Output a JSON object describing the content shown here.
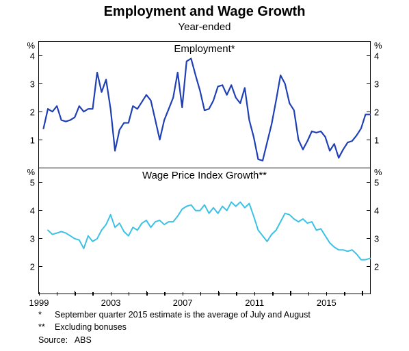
{
  "title": "Employment and Wage Growth",
  "subtitle": "Year-ended",
  "x_domain": [
    1997.0,
    2015.5
  ],
  "x_ticks": [
    1999,
    2003,
    2007,
    2011,
    2015
  ],
  "panels": [
    {
      "title": "Employment*",
      "ylim": [
        0,
        4.5
      ],
      "yticks": [
        1,
        2,
        3,
        4
      ],
      "unit": "%",
      "line_color": "#1f3fb5",
      "line_width": 2.2,
      "series": [
        [
          1997.25,
          1.4
        ],
        [
          1997.5,
          2.1
        ],
        [
          1997.75,
          2.0
        ],
        [
          1998.0,
          2.2
        ],
        [
          1998.25,
          1.7
        ],
        [
          1998.5,
          1.65
        ],
        [
          1998.75,
          1.7
        ],
        [
          1999.0,
          1.8
        ],
        [
          1999.25,
          2.2
        ],
        [
          1999.5,
          2.0
        ],
        [
          1999.75,
          2.1
        ],
        [
          2000.0,
          2.1
        ],
        [
          2000.25,
          3.4
        ],
        [
          2000.5,
          2.7
        ],
        [
          2000.75,
          3.15
        ],
        [
          2001.0,
          2.1
        ],
        [
          2001.25,
          0.6
        ],
        [
          2001.5,
          1.35
        ],
        [
          2001.75,
          1.6
        ],
        [
          2002.0,
          1.6
        ],
        [
          2002.25,
          2.2
        ],
        [
          2002.5,
          2.1
        ],
        [
          2002.75,
          2.35
        ],
        [
          2003.0,
          2.6
        ],
        [
          2003.25,
          2.4
        ],
        [
          2003.5,
          1.7
        ],
        [
          2003.75,
          1.0
        ],
        [
          2004.0,
          1.7
        ],
        [
          2004.25,
          2.1
        ],
        [
          2004.5,
          2.5
        ],
        [
          2004.75,
          3.4
        ],
        [
          2005.0,
          2.15
        ],
        [
          2005.25,
          3.8
        ],
        [
          2005.5,
          3.9
        ],
        [
          2005.75,
          3.3
        ],
        [
          2006.0,
          2.75
        ],
        [
          2006.25,
          2.05
        ],
        [
          2006.5,
          2.1
        ],
        [
          2006.75,
          2.4
        ],
        [
          2007.0,
          2.9
        ],
        [
          2007.25,
          2.95
        ],
        [
          2007.5,
          2.6
        ],
        [
          2007.75,
          2.95
        ],
        [
          2008.0,
          2.5
        ],
        [
          2008.25,
          2.3
        ],
        [
          2008.5,
          2.85
        ],
        [
          2008.75,
          1.7
        ],
        [
          2009.0,
          1.1
        ],
        [
          2009.25,
          0.3
        ],
        [
          2009.5,
          0.25
        ],
        [
          2009.75,
          0.9
        ],
        [
          2010.0,
          1.55
        ],
        [
          2010.25,
          2.4
        ],
        [
          2010.5,
          3.3
        ],
        [
          2010.75,
          3.0
        ],
        [
          2011.0,
          2.3
        ],
        [
          2011.25,
          2.05
        ],
        [
          2011.5,
          1.0
        ],
        [
          2011.75,
          0.65
        ],
        [
          2012.0,
          0.95
        ],
        [
          2012.25,
          1.3
        ],
        [
          2012.5,
          1.25
        ],
        [
          2012.75,
          1.3
        ],
        [
          2013.0,
          1.1
        ],
        [
          2013.25,
          0.6
        ],
        [
          2013.5,
          0.85
        ],
        [
          2013.75,
          0.35
        ],
        [
          2014.0,
          0.65
        ],
        [
          2014.25,
          0.9
        ],
        [
          2014.5,
          0.95
        ],
        [
          2014.75,
          1.15
        ],
        [
          2015.0,
          1.4
        ],
        [
          2015.25,
          1.9
        ],
        [
          2015.5,
          1.9
        ]
      ]
    },
    {
      "title": "Wage Price Index Growth**",
      "ylim": [
        1,
        5.5
      ],
      "yticks": [
        2,
        3,
        4,
        5
      ],
      "unit": "%",
      "line_color": "#3bc1e6",
      "line_width": 2.0,
      "series": [
        [
          1997.5,
          3.3
        ],
        [
          1997.75,
          3.15
        ],
        [
          1998.0,
          3.2
        ],
        [
          1998.25,
          3.25
        ],
        [
          1998.5,
          3.2
        ],
        [
          1998.75,
          3.1
        ],
        [
          1999.0,
          3.0
        ],
        [
          1999.25,
          2.95
        ],
        [
          1999.5,
          2.65
        ],
        [
          1999.75,
          3.1
        ],
        [
          2000.0,
          2.9
        ],
        [
          2000.25,
          3.0
        ],
        [
          2000.5,
          3.3
        ],
        [
          2000.75,
          3.5
        ],
        [
          2001.0,
          3.85
        ],
        [
          2001.25,
          3.4
        ],
        [
          2001.5,
          3.55
        ],
        [
          2001.75,
          3.25
        ],
        [
          2002.0,
          3.1
        ],
        [
          2002.25,
          3.4
        ],
        [
          2002.5,
          3.3
        ],
        [
          2002.75,
          3.55
        ],
        [
          2003.0,
          3.65
        ],
        [
          2003.25,
          3.4
        ],
        [
          2003.5,
          3.6
        ],
        [
          2003.75,
          3.65
        ],
        [
          2004.0,
          3.5
        ],
        [
          2004.25,
          3.6
        ],
        [
          2004.5,
          3.6
        ],
        [
          2004.75,
          3.8
        ],
        [
          2005.0,
          4.05
        ],
        [
          2005.25,
          4.15
        ],
        [
          2005.5,
          4.2
        ],
        [
          2005.75,
          4.0
        ],
        [
          2006.0,
          4.0
        ],
        [
          2006.25,
          4.2
        ],
        [
          2006.5,
          3.9
        ],
        [
          2006.75,
          4.1
        ],
        [
          2007.0,
          3.9
        ],
        [
          2007.25,
          4.15
        ],
        [
          2007.5,
          4.0
        ],
        [
          2007.75,
          4.3
        ],
        [
          2008.0,
          4.15
        ],
        [
          2008.25,
          4.3
        ],
        [
          2008.5,
          4.1
        ],
        [
          2008.75,
          4.25
        ],
        [
          2009.0,
          3.8
        ],
        [
          2009.25,
          3.3
        ],
        [
          2009.5,
          3.1
        ],
        [
          2009.75,
          2.9
        ],
        [
          2010.0,
          3.15
        ],
        [
          2010.25,
          3.3
        ],
        [
          2010.5,
          3.6
        ],
        [
          2010.75,
          3.9
        ],
        [
          2011.0,
          3.85
        ],
        [
          2011.25,
          3.7
        ],
        [
          2011.5,
          3.6
        ],
        [
          2011.75,
          3.7
        ],
        [
          2012.0,
          3.55
        ],
        [
          2012.25,
          3.6
        ],
        [
          2012.5,
          3.3
        ],
        [
          2012.75,
          3.35
        ],
        [
          2013.0,
          3.1
        ],
        [
          2013.25,
          2.85
        ],
        [
          2013.5,
          2.7
        ],
        [
          2013.75,
          2.6
        ],
        [
          2014.0,
          2.6
        ],
        [
          2014.25,
          2.55
        ],
        [
          2014.5,
          2.6
        ],
        [
          2014.75,
          2.45
        ],
        [
          2015.0,
          2.25
        ],
        [
          2015.25,
          2.25
        ],
        [
          2015.5,
          2.3
        ]
      ]
    }
  ],
  "footnotes": [
    {
      "mark": "*",
      "text": "September quarter 2015 estimate is the average of July and August"
    },
    {
      "mark": "**",
      "text": "Excluding bonuses"
    }
  ],
  "source_label": "Source:",
  "source_value": "ABS",
  "colors": {
    "text": "#000000",
    "bg": "#ffffff",
    "border": "#000000"
  }
}
